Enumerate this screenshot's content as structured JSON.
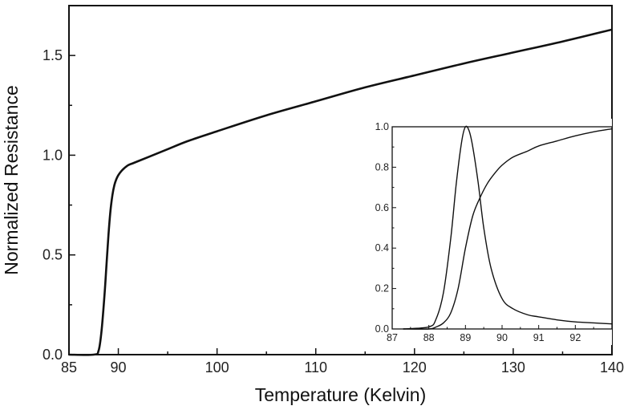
{
  "chart_data": [
    {
      "type": "line",
      "title": "",
      "xlabel": "Temperature (Kelvin)",
      "ylabel": "Normalized Resistance",
      "xlim": [
        85,
        140
      ],
      "ylim": [
        0.0,
        1.75
      ],
      "xticks": [
        85,
        90,
        100,
        110,
        120,
        130,
        140
      ],
      "yticks": [
        0.0,
        0.5,
        1.0,
        1.5
      ],
      "xtick_labels": [
        "85",
        "90",
        "100",
        "110",
        "120",
        "130",
        "140"
      ],
      "ytick_labels": [
        "0.0",
        "0.5",
        "1.0",
        "1.5"
      ],
      "grid": false,
      "series": [
        {
          "x": [
            85,
            87.5,
            88.0,
            88.3,
            88.6,
            88.8,
            89.0,
            89.2,
            89.4,
            89.6,
            89.8,
            90.0,
            90.3,
            90.6,
            91.0,
            91.5,
            92,
            93,
            95,
            97,
            100,
            105,
            110,
            115,
            120,
            125,
            130,
            135,
            140
          ],
          "y": [
            0.0,
            0.0,
            0.02,
            0.12,
            0.3,
            0.45,
            0.6,
            0.72,
            0.8,
            0.85,
            0.88,
            0.9,
            0.92,
            0.935,
            0.95,
            0.96,
            0.97,
            0.99,
            1.03,
            1.07,
            1.12,
            1.2,
            1.27,
            1.34,
            1.4,
            1.46,
            1.515,
            1.57,
            1.63
          ]
        }
      ]
    },
    {
      "type": "line",
      "title": "",
      "xlabel": "",
      "ylabel": "",
      "xlim": [
        87,
        93
      ],
      "ylim": [
        0.0,
        1.0
      ],
      "xticks": [
        87,
        88,
        89,
        90,
        91,
        92
      ],
      "yticks": [
        0.0,
        0.2,
        0.4,
        0.6,
        0.8,
        1.0
      ],
      "xtick_labels": [
        "87",
        "88",
        "89",
        "90",
        "91",
        "92"
      ],
      "ytick_labels": [
        "0.0",
        "0.2",
        "0.4",
        "0.6",
        "0.8",
        "1.0"
      ],
      "grid": false,
      "series": [
        {
          "x": [
            87.3,
            88.0,
            88.2,
            88.4,
            88.6,
            88.75,
            88.9,
            89.0,
            89.1,
            89.2,
            89.35,
            89.5,
            89.7,
            90.0,
            90.3,
            90.7,
            91.0,
            91.5,
            92.0,
            92.5,
            93.0
          ],
          "y": [
            0.0,
            0.01,
            0.05,
            0.18,
            0.45,
            0.72,
            0.93,
            1.0,
            0.98,
            0.9,
            0.72,
            0.5,
            0.3,
            0.15,
            0.1,
            0.07,
            0.06,
            0.045,
            0.035,
            0.03,
            0.025
          ]
        },
        {
          "x": [
            87.3,
            88.0,
            88.2,
            88.4,
            88.6,
            88.8,
            89.0,
            89.2,
            89.4,
            89.6,
            89.8,
            90.0,
            90.3,
            90.7,
            91.0,
            91.5,
            92.0,
            92.5,
            93.0
          ],
          "y": [
            0.0,
            0.0,
            0.01,
            0.03,
            0.08,
            0.2,
            0.4,
            0.56,
            0.65,
            0.72,
            0.77,
            0.81,
            0.85,
            0.88,
            0.905,
            0.93,
            0.955,
            0.975,
            0.99
          ]
        }
      ]
    }
  ]
}
